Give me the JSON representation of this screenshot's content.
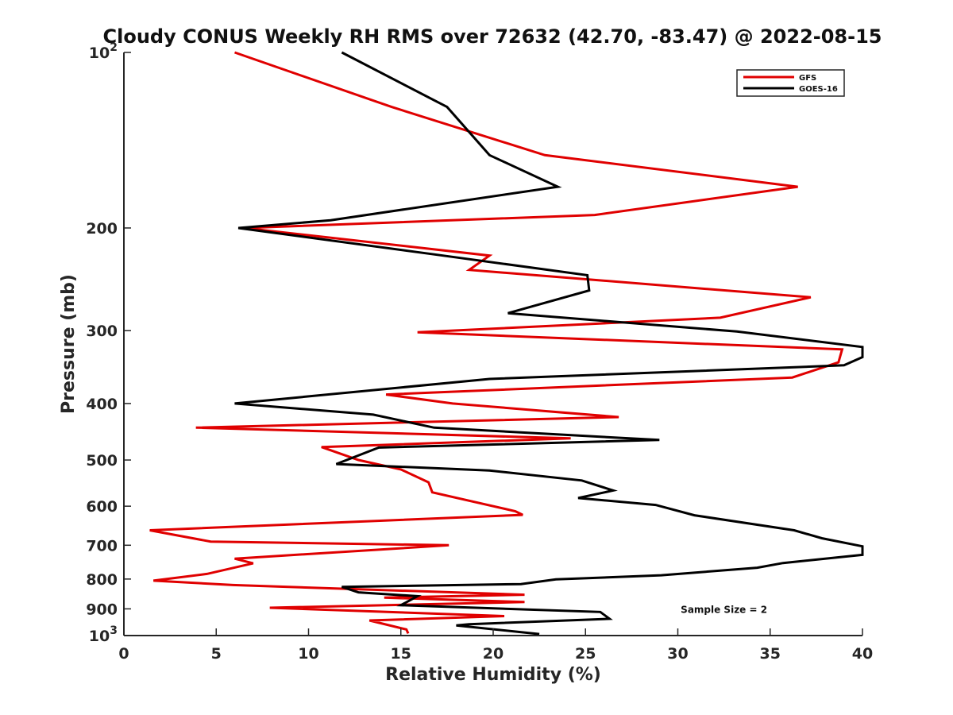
{
  "chart_data": {
    "type": "line",
    "title": "Cloudy CONUS Weekly RH RMS over 72632 (42.70, -83.47) @ 2022-08-15",
    "xlabel": "Relative Humidity (%)",
    "ylabel": "Pressure (mb)",
    "xlim": [
      0,
      40
    ],
    "ylim": [
      100,
      1000
    ],
    "y_scale": "log",
    "y_reversed": true,
    "grid": false,
    "legend_position": "top-right",
    "x_ticks": [
      "0",
      "5",
      "10",
      "15",
      "20",
      "25",
      "30",
      "35",
      "40"
    ],
    "y_ticks": [
      {
        "value": 100,
        "base": "10",
        "exp": "2"
      },
      {
        "value": 200,
        "label": "200"
      },
      {
        "value": 300,
        "label": "300"
      },
      {
        "value": 400,
        "label": "400"
      },
      {
        "value": 500,
        "label": "500"
      },
      {
        "value": 600,
        "label": "600"
      },
      {
        "value": 700,
        "label": "700"
      },
      {
        "value": 800,
        "label": "800"
      },
      {
        "value": 900,
        "label": "900"
      },
      {
        "value": 1000,
        "base": "10",
        "exp": "3"
      }
    ],
    "series": [
      {
        "name": "GFS",
        "color": "#e00000",
        "x": [
          6.0,
          14.5,
          22.8,
          36.5,
          25.5,
          6.5,
          19.8,
          18.7,
          37.2,
          32.3,
          15.9,
          38.9,
          38.7,
          36.2,
          14.2,
          17.8,
          26.8,
          3.9,
          24.2,
          10.7,
          12.7,
          15.0,
          16.5,
          16.7,
          21.2,
          21.6,
          1.4,
          4.7,
          17.6,
          6.0,
          7.0,
          4.5,
          1.6,
          5.9,
          21.7,
          14.1,
          21.7,
          7.9,
          20.6,
          13.3,
          15.3,
          15.4
        ],
        "y": [
          100,
          124,
          150,
          170,
          190,
          200,
          223,
          236,
          263,
          285,
          302,
          323,
          340,
          361,
          386,
          400,
          422,
          440,
          459,
          475,
          500,
          519,
          546,
          568,
          612,
          621,
          660,
          690,
          700,
          738,
          752,
          784,
          805,
          819,
          851,
          861,
          876,
          896,
          926,
          942,
          976,
          992
        ]
      },
      {
        "name": "GOES-16",
        "color": "#000000",
        "x": [
          11.8,
          17.5,
          19.8,
          23.5,
          11.2,
          6.2,
          16.8,
          25.1,
          25.2,
          20.8,
          33.2,
          40.0,
          40.0,
          39.0,
          19.8,
          6.0,
          13.5,
          16.8,
          29.0,
          13.8,
          11.5,
          19.8,
          24.8,
          26.5,
          24.6,
          28.8,
          30.9,
          36.3,
          37.8,
          40.0,
          40.0,
          35.7,
          34.3,
          29.1,
          23.4,
          21.5,
          11.8,
          12.7,
          15.9,
          15.0,
          25.8,
          26.3,
          18.7,
          18.0,
          22.5
        ],
        "y": [
          100,
          124,
          150,
          170,
          194,
          200,
          222,
          241,
          256,
          280,
          301,
          320,
          333,
          344,
          363,
          400,
          418,
          440,
          462,
          476,
          508,
          521,
          542,
          564,
          581,
          597,
          622,
          660,
          681,
          703,
          727,
          751,
          765,
          788,
          801,
          816,
          825,
          843,
          856,
          887,
          911,
          936,
          956,
          961,
          994
        ]
      }
    ],
    "annotations": [
      {
        "text": "Sample Size = 2",
        "x": 32.5,
        "y": 900
      }
    ]
  }
}
